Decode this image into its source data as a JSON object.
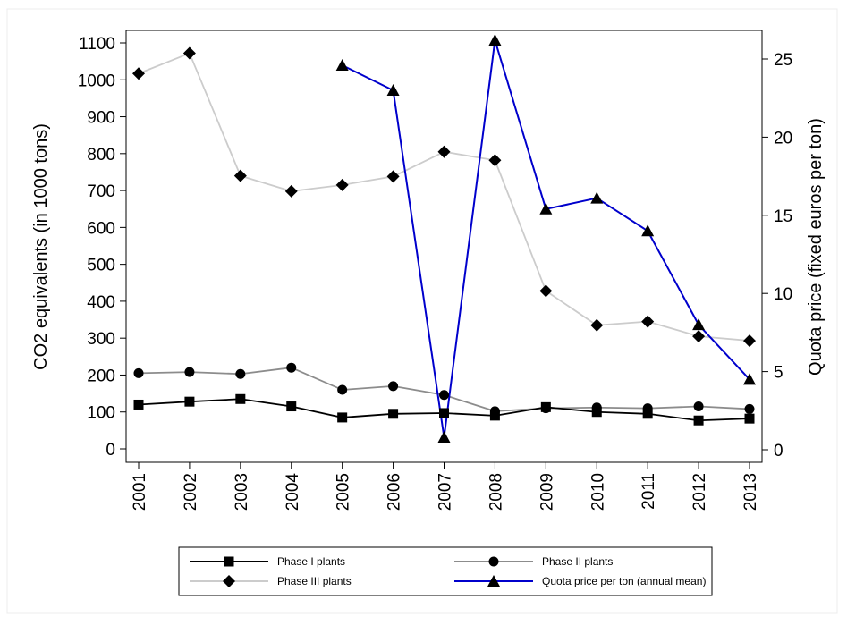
{
  "chart_data": {
    "type": "line",
    "title": "",
    "x": [
      2001,
      2002,
      2003,
      2004,
      2005,
      2006,
      2007,
      2008,
      2009,
      2010,
      2011,
      2012,
      2013
    ],
    "xlabel": "",
    "ylabel": "CO2 equivalents (in 1000 tons)",
    "y2label": "Quota price (fixed euros per ton)",
    "ylim": [
      0,
      1100
    ],
    "y2lim": [
      0,
      25
    ],
    "y_ticks": [
      0,
      100,
      200,
      300,
      400,
      500,
      600,
      700,
      800,
      900,
      1000,
      1100
    ],
    "y2_ticks": [
      0,
      5,
      10,
      15,
      20,
      25
    ],
    "grid": false,
    "legend_position": "bottom",
    "legend_columns": 2,
    "series": [
      {
        "name": "Phase I plants",
        "axis": "left",
        "marker": "square",
        "color": "#000000",
        "values": [
          120,
          128,
          135,
          115,
          85,
          95,
          97,
          90,
          113,
          100,
          95,
          77,
          82
        ]
      },
      {
        "name": "Phase II plants",
        "axis": "left",
        "marker": "circle",
        "color": "#8c8c8c",
        "values": [
          205,
          208,
          203,
          220,
          160,
          170,
          146,
          102,
          110,
          112,
          110,
          115,
          108
        ]
      },
      {
        "name": "Phase III plants",
        "axis": "left",
        "marker": "diamond",
        "color": "#cccccc",
        "values": [
          1017,
          1072,
          740,
          698,
          715,
          738,
          805,
          782,
          428,
          335,
          345,
          305,
          293
        ]
      },
      {
        "name": "Quota price per ton (annual mean)",
        "axis": "right",
        "marker": "triangle",
        "color": "#0000cc",
        "values": [
          null,
          null,
          null,
          null,
          24.6,
          23.0,
          0.8,
          26.2,
          15.4,
          16.1,
          14.0,
          8.0,
          4.5
        ]
      }
    ]
  }
}
